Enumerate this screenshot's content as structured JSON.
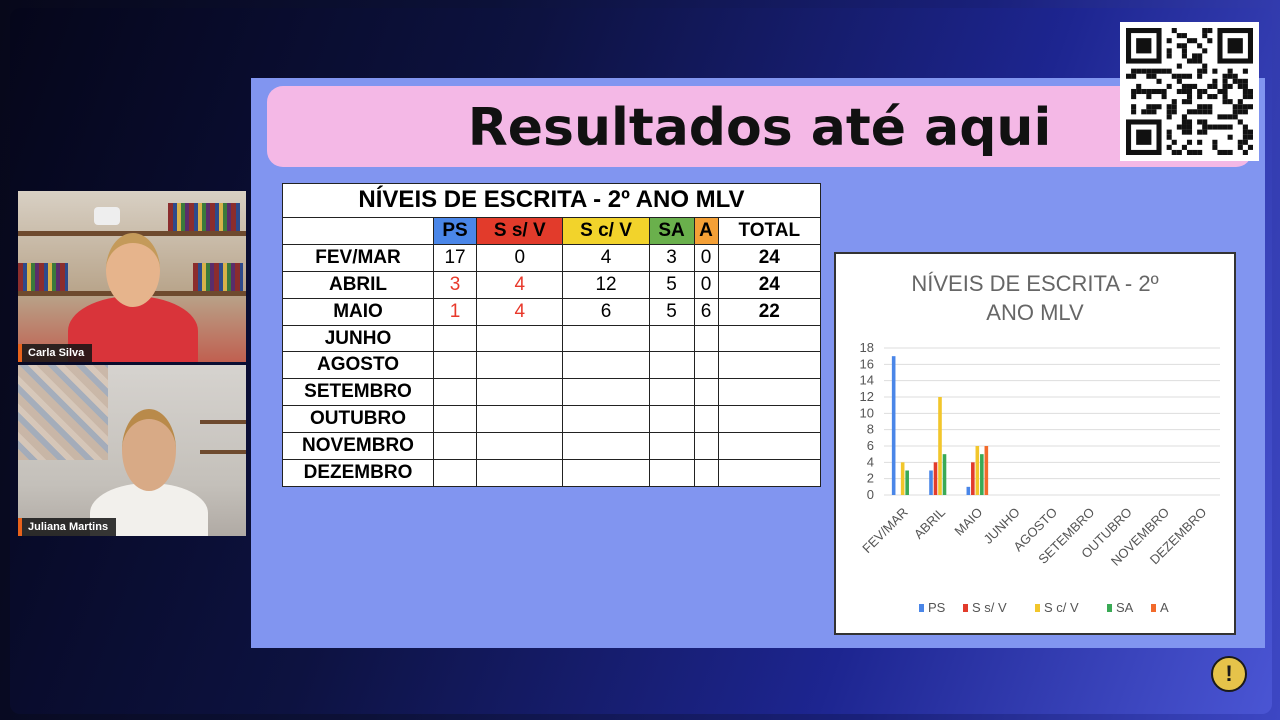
{
  "slide": {
    "title": "Resultados até aqui",
    "table": {
      "title": "NÍVEIS DE ESCRITA - 2º ANO MLV",
      "headers": [
        {
          "label": "PS",
          "color": "#4a86e8"
        },
        {
          "label": "S s/ V",
          "color": "#e23b2b"
        },
        {
          "label": "S c/ V",
          "color": "#f2d32b"
        },
        {
          "label": "SA",
          "color": "#6ab04c"
        },
        {
          "label": "A",
          "color": "#f4a036"
        },
        {
          "label": "TOTAL",
          "color": "#ffffff"
        }
      ],
      "rows": [
        {
          "month": "FEV/MAR",
          "values": [
            "17",
            "0",
            "4",
            "3",
            "0"
          ],
          "red": [
            false,
            false,
            false,
            false,
            false
          ],
          "total": "24"
        },
        {
          "month": "ABRIL",
          "values": [
            "3",
            "4",
            "12",
            "5",
            "0"
          ],
          "red": [
            true,
            true,
            false,
            false,
            false
          ],
          "total": "24"
        },
        {
          "month": "MAIO",
          "values": [
            "1",
            "4",
            "6",
            "5",
            "6"
          ],
          "red": [
            true,
            true,
            false,
            false,
            false
          ],
          "total": "22"
        },
        {
          "month": "JUNHO",
          "values": [
            "",
            "",
            "",
            "",
            ""
          ],
          "red": [
            false,
            false,
            false,
            false,
            false
          ],
          "total": ""
        },
        {
          "month": "AGOSTO",
          "values": [
            "",
            "",
            "",
            "",
            ""
          ],
          "red": [
            false,
            false,
            false,
            false,
            false
          ],
          "total": ""
        },
        {
          "month": "SETEMBRO",
          "values": [
            "",
            "",
            "",
            "",
            ""
          ],
          "red": [
            false,
            false,
            false,
            false,
            false
          ],
          "total": ""
        },
        {
          "month": "OUTUBRO",
          "values": [
            "",
            "",
            "",
            "",
            ""
          ],
          "red": [
            false,
            false,
            false,
            false,
            false
          ],
          "total": ""
        },
        {
          "month": "NOVEMBRO",
          "values": [
            "",
            "",
            "",
            "",
            ""
          ],
          "red": [
            false,
            false,
            false,
            false,
            false
          ],
          "total": ""
        },
        {
          "month": "DEZEMBRO",
          "values": [
            "",
            "",
            "",
            "",
            ""
          ],
          "red": [
            false,
            false,
            false,
            false,
            false
          ],
          "total": ""
        }
      ]
    }
  },
  "participants": [
    {
      "name": "Carla Silva"
    },
    {
      "name": "Juliana Martins"
    }
  ],
  "icons": {
    "alert": "exclamation-icon",
    "qr": "qr-code-icon"
  },
  "alert_symbol": "!",
  "chart_data": {
    "type": "bar",
    "title": "NÍVEIS DE ESCRITA - 2º ANO MLV",
    "categories": [
      "FEV/MAR",
      "ABRIL",
      "MAIO",
      "JUNHO",
      "AGOSTO",
      "SETEMBRO",
      "OUTUBRO",
      "NOVEMBRO",
      "DEZEMBRO"
    ],
    "ylim": [
      0,
      18
    ],
    "yticks": [
      0,
      2,
      4,
      6,
      8,
      10,
      12,
      14,
      16,
      18
    ],
    "grid": true,
    "legend": "bottom",
    "series": [
      {
        "name": "PS",
        "color": "#4a86e8",
        "values": [
          17,
          3,
          1,
          null,
          null,
          null,
          null,
          null,
          null
        ]
      },
      {
        "name": "S s/ V",
        "color": "#e23b2b",
        "values": [
          0,
          4,
          4,
          null,
          null,
          null,
          null,
          null,
          null
        ]
      },
      {
        "name": "S c/ V",
        "color": "#f2c62b",
        "values": [
          4,
          12,
          6,
          null,
          null,
          null,
          null,
          null,
          null
        ]
      },
      {
        "name": "SA",
        "color": "#3aaa55",
        "values": [
          3,
          5,
          5,
          null,
          null,
          null,
          null,
          null,
          null
        ]
      },
      {
        "name": "A",
        "color": "#f26a2b",
        "values": [
          0,
          0,
          6,
          null,
          null,
          null,
          null,
          null,
          null
        ]
      }
    ]
  }
}
